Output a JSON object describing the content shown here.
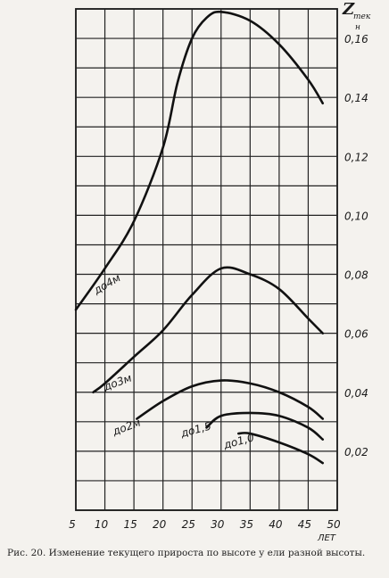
{
  "chart_data": {
    "type": "line",
    "xlabel": "ЛЕТ",
    "ylabel": "Z",
    "ylabel_sub": "тек",
    "ylabel_sub2": "н",
    "caption": "Рис. 20. Изменение текущего прироста по высоте у ели разной высоты.",
    "xlim": [
      5,
      50
    ],
    "xticks": [
      5,
      10,
      15,
      20,
      25,
      30,
      35,
      40,
      45,
      50
    ],
    "ylim": [
      0,
      0.17
    ],
    "yticks": [
      {
        "value": 0.02,
        "label": "0,02"
      },
      {
        "value": 0.04,
        "label": "0,04"
      },
      {
        "value": 0.06,
        "label": "0,06"
      },
      {
        "value": 0.08,
        "label": "0,08"
      },
      {
        "value": 0.1,
        "label": "0,10"
      },
      {
        "value": 0.12,
        "label": "0,12"
      },
      {
        "value": 0.14,
        "label": "0,14"
      },
      {
        "value": 0.16,
        "label": "0,16"
      }
    ],
    "minor_yticks": [
      0.01,
      0.03,
      0.05,
      0.07,
      0.09,
      0.11,
      0.13,
      0.15,
      0.17
    ],
    "grid": true,
    "color": "#111111",
    "series": [
      {
        "name": "до4м",
        "x": [
          5,
          10,
          15,
          20,
          22.5,
          25,
          27.5,
          30,
          35,
          40,
          45,
          47.5
        ],
        "values": [
          0.068,
          0.082,
          0.098,
          0.123,
          0.145,
          0.16,
          0.167,
          0.169,
          0.166,
          0.158,
          0.146,
          0.138
        ]
      },
      {
        "name": "до3м",
        "x": [
          8,
          10,
          15,
          20,
          25,
          30,
          35,
          40,
          45,
          47.5
        ],
        "values": [
          0.04,
          0.043,
          0.052,
          0.061,
          0.073,
          0.082,
          0.08,
          0.075,
          0.065,
          0.06
        ]
      },
      {
        "name": "до2м",
        "x": [
          15.5,
          20,
          25,
          30,
          35,
          40,
          45,
          47.5
        ],
        "values": [
          0.031,
          0.037,
          0.042,
          0.044,
          0.043,
          0.04,
          0.035,
          0.031
        ]
      },
      {
        "name": "до1,5",
        "x": [
          27.5,
          30,
          35,
          40,
          45,
          47.5
        ],
        "values": [
          0.028,
          0.032,
          0.033,
          0.032,
          0.028,
          0.024
        ]
      },
      {
        "name": "до1,0",
        "x": [
          33,
          35,
          40,
          45,
          47.5
        ],
        "values": [
          0.026,
          0.026,
          0.023,
          0.019,
          0.016
        ]
      }
    ]
  }
}
